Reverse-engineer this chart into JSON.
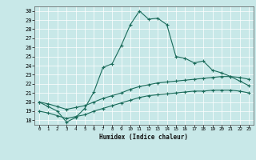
{
  "title": "",
  "xlabel": "Humidex (Indice chaleur)",
  "ylabel": "",
  "bg_color": "#c8e8e8",
  "line_color": "#1a6b5a",
  "grid_color": "#ffffff",
  "xlim": [
    -0.5,
    23.5
  ],
  "ylim": [
    17.5,
    30.5
  ],
  "xticks": [
    0,
    1,
    2,
    3,
    4,
    5,
    6,
    7,
    8,
    9,
    10,
    11,
    12,
    13,
    14,
    15,
    16,
    17,
    18,
    19,
    20,
    21,
    22,
    23
  ],
  "yticks": [
    18,
    19,
    20,
    21,
    22,
    23,
    24,
    25,
    26,
    27,
    28,
    29,
    30
  ],
  "line1_x": [
    0,
    1,
    2,
    3,
    4,
    5,
    6,
    7,
    8,
    9,
    10,
    11,
    12,
    13,
    14,
    15,
    16,
    17,
    18,
    19,
    20,
    21,
    22,
    23
  ],
  "line1_y": [
    20.0,
    19.5,
    19.0,
    17.8,
    18.3,
    19.3,
    21.1,
    23.8,
    24.2,
    26.2,
    28.5,
    30.0,
    29.1,
    29.2,
    28.5,
    25.0,
    24.8,
    24.3,
    24.5,
    23.5,
    23.2,
    22.8,
    22.3,
    21.8
  ],
  "line2_x": [
    0,
    1,
    2,
    3,
    4,
    5,
    6,
    7,
    8,
    9,
    10,
    11,
    12,
    13,
    14,
    15,
    16,
    17,
    18,
    19,
    20,
    21,
    22,
    23
  ],
  "line2_y": [
    20.0,
    19.8,
    19.5,
    19.2,
    19.4,
    19.6,
    20.0,
    20.4,
    20.7,
    21.0,
    21.4,
    21.7,
    21.9,
    22.1,
    22.2,
    22.3,
    22.4,
    22.5,
    22.6,
    22.7,
    22.8,
    22.8,
    22.7,
    22.5
  ],
  "line3_x": [
    0,
    1,
    2,
    3,
    4,
    5,
    6,
    7,
    8,
    9,
    10,
    11,
    12,
    13,
    14,
    15,
    16,
    17,
    18,
    19,
    20,
    21,
    22,
    23
  ],
  "line3_y": [
    19.0,
    18.8,
    18.5,
    18.2,
    18.4,
    18.6,
    19.0,
    19.3,
    19.6,
    19.9,
    20.2,
    20.5,
    20.7,
    20.8,
    20.9,
    21.0,
    21.1,
    21.2,
    21.2,
    21.3,
    21.3,
    21.3,
    21.2,
    21.0
  ]
}
